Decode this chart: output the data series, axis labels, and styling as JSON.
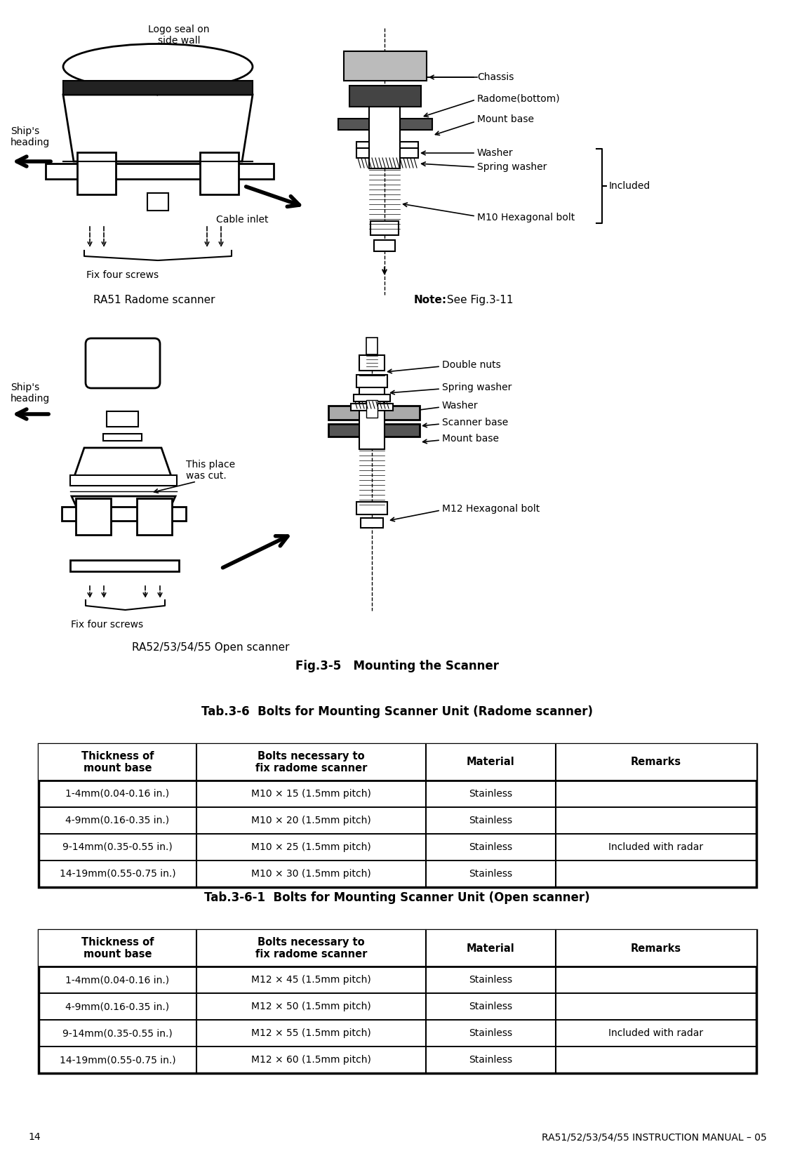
{
  "page_num": "14",
  "header_right": "RA51/52/53/54/55 INSTRUCTION MANUAL – 05",
  "fig_caption": "Fig.3-5   Mounting the Scanner",
  "tab1_title": "Tab.3-6  Bolts for Mounting Scanner Unit (Radome scanner)",
  "tab2_title": "Tab.3-6-1  Bolts for Mounting Scanner Unit (Open scanner)",
  "tab_col_headers": [
    "Thickness of\nmount base",
    "Bolts necessary to\nfix radome scanner",
    "Material",
    "Remarks"
  ],
  "tab1_rows": [
    [
      "1-4mm(0.04-0.16 in.)",
      "M10 × 15 (1.5mm pitch)",
      "Stainless",
      ""
    ],
    [
      "4-9mm(0.16-0.35 in.)",
      "M10 × 20 (1.5mm pitch)",
      "Stainless",
      ""
    ],
    [
      "9-14mm(0.35-0.55 in.)",
      "M10 × 25 (1.5mm pitch)",
      "Stainless",
      "Included with radar"
    ],
    [
      "14-19mm(0.55-0.75 in.)",
      "M10 × 30 (1.5mm pitch)",
      "Stainless",
      ""
    ]
  ],
  "tab2_rows": [
    [
      "1-4mm(0.04-0.16 in.)",
      "M12 × 45 (1.5mm pitch)",
      "Stainless",
      ""
    ],
    [
      "4-9mm(0.16-0.35 in.)",
      "M12 × 50 (1.5mm pitch)",
      "Stainless",
      ""
    ],
    [
      "9-14mm(0.35-0.55 in.)",
      "M12 × 55 (1.5mm pitch)",
      "Stainless",
      "Included with radar"
    ],
    [
      "14-19mm(0.55-0.75 in.)",
      "M12 × 60 (1.5mm pitch)",
      "Stainless",
      ""
    ]
  ],
  "radome_labels": {
    "logo_seal": "Logo seal on\nside wall",
    "ships_heading": "Ship's\nheading",
    "cable_inlet": "Cable inlet",
    "fix_four_screws": "Fix four screws",
    "scanner_name": "RA51 Radome scanner",
    "note_bold": "Note:",
    "note_rest": " See Fig.3-11",
    "chassis": "Chassis",
    "radome_bottom": "Radome(bottom)",
    "mount_base": "Mount base",
    "washer": "Washer",
    "spring_washer": "Spring washer",
    "m10_bolt": "M10 Hexagonal bolt",
    "included": "Included"
  },
  "open_labels": {
    "ships_heading": "Ship's\nheading",
    "this_place": "This place\nwas cut.",
    "fix_four_screws": "Fix four screws",
    "scanner_name": "RA52/53/54/55 Open scanner",
    "double_nuts": "Double nuts",
    "spring_washer": "Spring washer",
    "washer": "Washer",
    "scanner_base": "Scanner base",
    "mount_base": "Mount base",
    "m12_bolt": "M12 Hexagonal bolt"
  },
  "bg_color": "#ffffff",
  "text_color": "#000000"
}
